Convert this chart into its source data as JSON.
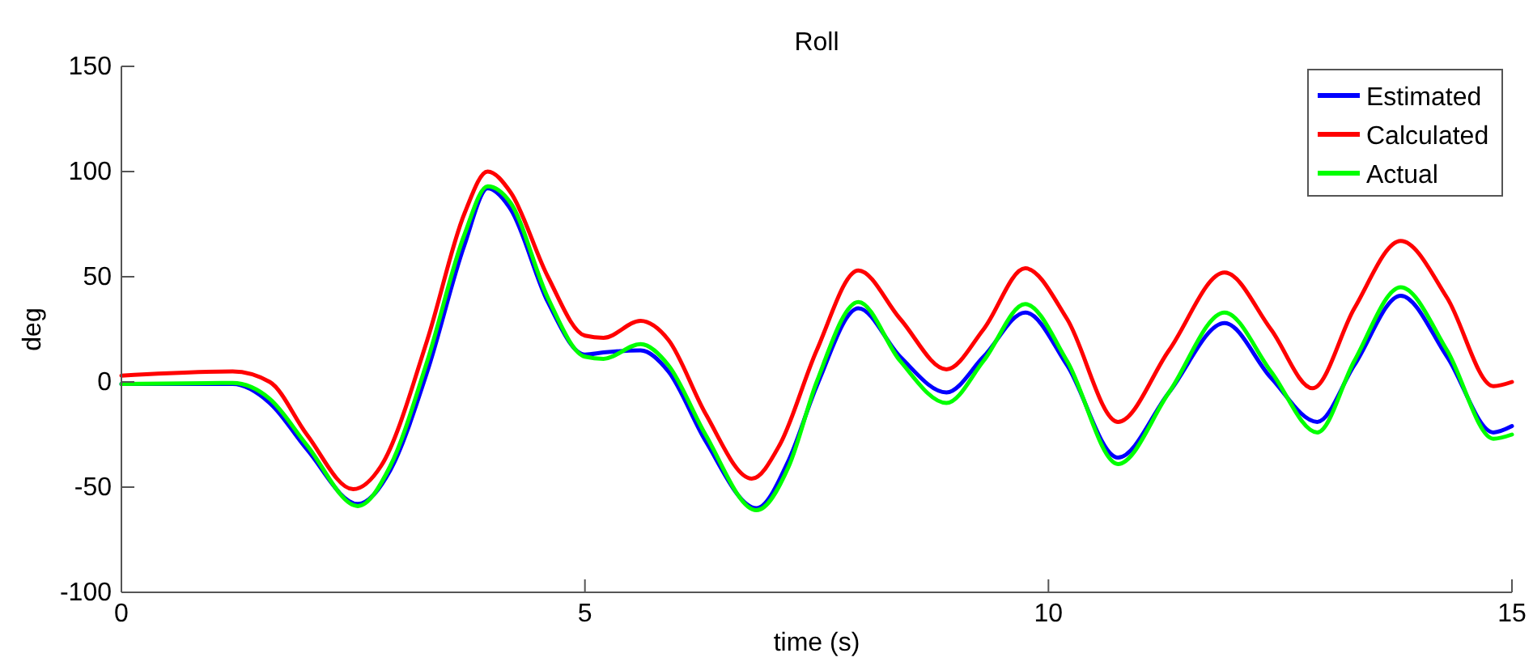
{
  "chart_data": {
    "type": "line",
    "title": "Roll",
    "xlabel": "time (s)",
    "ylabel": "deg",
    "xlim": [
      0,
      15
    ],
    "ylim": [
      -100,
      150
    ],
    "xticks": [
      0,
      5,
      10,
      15
    ],
    "yticks": [
      -100,
      -50,
      0,
      50,
      100,
      150
    ],
    "grid": false,
    "legend": "top right",
    "line_style": "solid",
    "marker": "none",
    "series": [
      {
        "name": "Estimated",
        "color": "#0000ff",
        "x": [
          0,
          1.2,
          1.6,
          2,
          2.55,
          2.9,
          3.3,
          3.7,
          3.95,
          4.2,
          4.6,
          5,
          5.2,
          5.6,
          5.9,
          6.3,
          6.85,
          7.2,
          7.5,
          7.95,
          8.4,
          8.9,
          9.3,
          9.75,
          10.2,
          10.75,
          11.3,
          11.9,
          12.4,
          12.9,
          13.3,
          13.8,
          14.3,
          14.8,
          15
        ],
        "values": [
          -1,
          -1,
          -10,
          -32,
          -58,
          -42,
          5,
          65,
          92,
          82,
          38,
          13,
          14,
          15,
          5,
          -28,
          -60,
          -37,
          -2,
          35,
          12,
          -5,
          12,
          33,
          8,
          -36,
          -5,
          28,
          2,
          -19,
          8,
          41,
          12,
          -24,
          -21
        ]
      },
      {
        "name": "Calculated",
        "color": "#ff0000",
        "x": [
          0,
          1.2,
          1.6,
          2,
          2.5,
          2.8,
          3.3,
          3.7,
          3.95,
          4.2,
          4.6,
          5,
          5.2,
          5.6,
          5.9,
          6.3,
          6.8,
          7.1,
          7.5,
          7.95,
          8.4,
          8.9,
          9.3,
          9.75,
          10.2,
          10.75,
          11.3,
          11.9,
          12.4,
          12.85,
          13.3,
          13.8,
          14.3,
          14.8,
          15
        ],
        "values": [
          3,
          5,
          0,
          -25,
          -51,
          -40,
          20,
          80,
          100,
          90,
          50,
          22,
          21,
          29,
          20,
          -15,
          -46,
          -30,
          15,
          53,
          30,
          6,
          25,
          54,
          30,
          -19,
          15,
          52,
          25,
          -3,
          35,
          67,
          40,
          -2,
          0
        ]
      },
      {
        "name": "Actual",
        "color": "#00ff00",
        "x": [
          0,
          1.2,
          1.6,
          2,
          2.55,
          2.9,
          3.3,
          3.7,
          3.95,
          4.2,
          4.6,
          5,
          5.2,
          5.6,
          5.9,
          6.3,
          6.85,
          7.2,
          7.5,
          7.95,
          8.4,
          8.9,
          9.3,
          9.75,
          10.2,
          10.75,
          11.3,
          11.9,
          12.4,
          12.9,
          13.3,
          13.8,
          14.3,
          14.8,
          15
        ],
        "values": [
          -1,
          -0.5,
          -8,
          -30,
          -59,
          -40,
          10,
          70,
          93,
          85,
          40,
          12,
          11,
          18,
          8,
          -25,
          -61,
          -40,
          0,
          38,
          10,
          -10,
          10,
          37,
          10,
          -39,
          -5,
          33,
          5,
          -24,
          10,
          45,
          15,
          -27,
          -25
        ]
      }
    ]
  }
}
